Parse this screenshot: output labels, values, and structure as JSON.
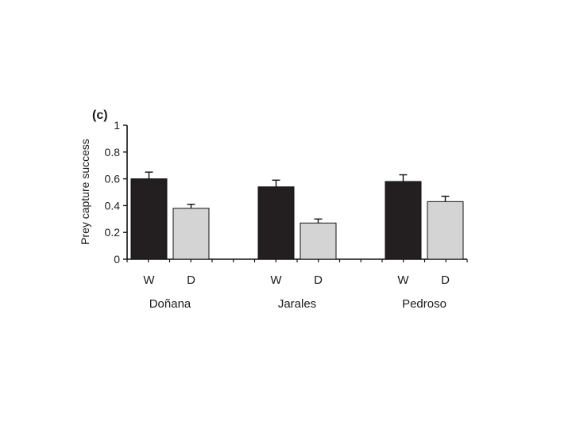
{
  "chart_data": {
    "type": "bar",
    "panel_label": "(c)",
    "ylabel": "Prey capture success",
    "ylim": [
      0,
      1
    ],
    "yticks": [
      0,
      0.2,
      0.4,
      0.6,
      0.8,
      1
    ],
    "ytick_labels": [
      "0",
      "0.2",
      "0.4",
      "0.6",
      "0.8",
      "1"
    ],
    "groups": [
      {
        "name": "Doñana",
        "bars": [
          {
            "label": "W",
            "value": 0.6,
            "error": 0.05,
            "color": "#231f20"
          },
          {
            "label": "D",
            "value": 0.38,
            "error": 0.03,
            "color": "#d4d4d4"
          }
        ]
      },
      {
        "name": "Jarales",
        "bars": [
          {
            "label": "W",
            "value": 0.54,
            "error": 0.05,
            "color": "#231f20"
          },
          {
            "label": "D",
            "value": 0.27,
            "error": 0.03,
            "color": "#d4d4d4"
          }
        ]
      },
      {
        "name": "Pedroso",
        "bars": [
          {
            "label": "W",
            "value": 0.58,
            "error": 0.05,
            "color": "#231f20"
          },
          {
            "label": "D",
            "value": 0.43,
            "error": 0.04,
            "color": "#d4d4d4"
          }
        ]
      }
    ],
    "grid": false,
    "legend": "none"
  }
}
